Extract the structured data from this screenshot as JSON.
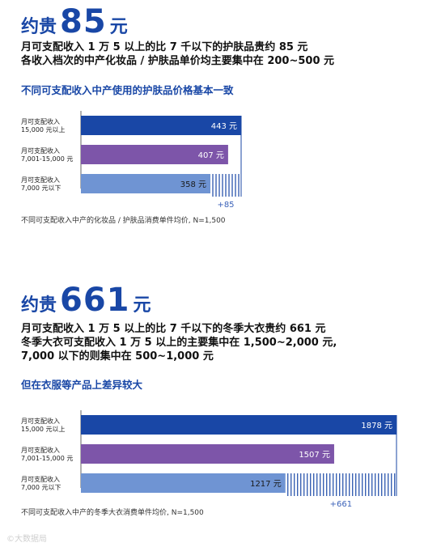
{
  "section1": {
    "headline": {
      "prefix": "约贵",
      "number": "85",
      "suffix": "元"
    },
    "desc": [
      "月可支配收入 1 万 5 以上的比 7 千以下的护肤品贵约 85 元",
      "各收入档次的中产化妆品 / 护肤品单价均主要集中在 200~500 元"
    ],
    "subtitle": "不同可支配收入中产使用的护肤品价格基本一致",
    "note": "不同可支配收入中产的化妆品 / 护肤品消费单件均价, N=1,500"
  },
  "section2": {
    "headline": {
      "prefix": "约贵",
      "number": "661",
      "suffix": "元"
    },
    "desc": [
      "月可支配收入 1 万 5 以上的比 7 千以下的冬季大衣贵约 661 元",
      "冬季大衣可支配收入 1 万 5 以上的主要集中在 1,500~2,000 元,",
      "7,000 以下的则集中在 500~1,000 元"
    ],
    "subtitle": "但在衣服等产品上差异较大",
    "note": "不同可支配收入中产的冬季大衣消费单件均价, N=1,500"
  },
  "chart_data": [
    {
      "type": "bar",
      "orientation": "horizontal",
      "categories": [
        [
          "月可支配收入",
          "15,000 元以上"
        ],
        [
          "月可支配收入",
          "7,001-15,000 元"
        ],
        [
          "月可支配收入",
          "7,000 元以下"
        ]
      ],
      "values": [
        443,
        407,
        358
      ],
      "value_labels": [
        "443 元",
        "407 元",
        "358 元"
      ],
      "colors": [
        "#1947a6",
        "#7d55a9",
        "#6f94d3"
      ],
      "difference_label": "+85"
    },
    {
      "type": "bar",
      "orientation": "horizontal",
      "categories": [
        [
          "月可支配收入",
          "15,000 元以上"
        ],
        [
          "月可支配收入",
          "7,001-15,000 元"
        ],
        [
          "月可支配收入",
          "7,000 元以下"
        ]
      ],
      "values": [
        1878,
        1507,
        1217
      ],
      "value_labels": [
        "1878 元",
        "1507 元",
        "1217 元"
      ],
      "colors": [
        "#1947a6",
        "#7d55a9",
        "#6f94d3"
      ],
      "difference_label": "+661"
    }
  ],
  "watermark": "©大数据局"
}
